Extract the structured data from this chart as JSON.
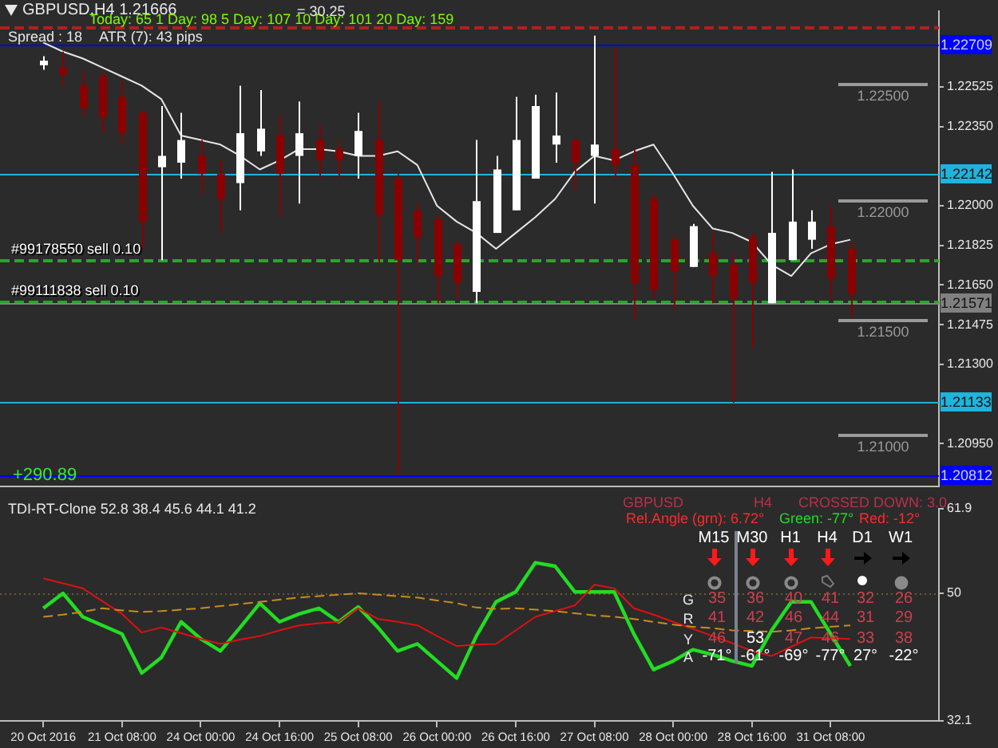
{
  "chart_data": [
    {
      "type": "candlestick",
      "title": "GBPUSD,H4  1.21666",
      "categories": [
        null,
        null,
        null,
        null,
        null,
        null,
        null,
        null,
        null,
        null,
        null,
        null,
        null,
        null,
        null,
        null,
        null,
        null,
        null,
        null,
        null,
        null,
        null,
        null,
        null,
        null,
        null,
        null,
        null,
        null,
        null,
        null,
        null,
        null,
        null,
        null,
        null,
        null,
        null,
        null,
        null,
        null
      ],
      "ohlc": [
        [
          1.2262,
          1.2266,
          1.226,
          1.2264
        ],
        [
          1.2261,
          1.2268,
          1.2253,
          1.2258
        ],
        [
          1.2253,
          1.2259,
          1.2239,
          1.2243
        ],
        [
          1.2257,
          1.2259,
          1.2232,
          1.2239
        ],
        [
          1.2248,
          1.2255,
          1.2227,
          1.2232
        ],
        [
          1.2241,
          1.2242,
          1.2181,
          1.2193
        ],
        [
          1.2217,
          1.2244,
          1.2176,
          1.2222
        ],
        [
          1.2219,
          1.2241,
          1.2212,
          1.2229
        ],
        [
          1.2222,
          1.2229,
          1.2205,
          1.2214
        ],
        [
          1.2214,
          1.222,
          1.2188,
          1.2203
        ],
        [
          1.221,
          1.2253,
          1.2198,
          1.2232
        ],
        [
          1.2224,
          1.2251,
          1.2222,
          1.2234
        ],
        [
          1.2231,
          1.224,
          1.2195,
          1.2214
        ],
        [
          1.2222,
          1.2246,
          1.2201,
          1.2232
        ],
        [
          1.2229,
          1.2236,
          1.2212,
          1.222
        ],
        [
          1.2225,
          1.2229,
          1.2212,
          1.222
        ],
        [
          1.2222,
          1.2241,
          1.2212,
          1.2233
        ],
        [
          1.2229,
          1.2246,
          1.2175,
          1.2196
        ],
        [
          1.2212,
          1.2214,
          1.2082,
          1.2176
        ],
        [
          1.2198,
          1.2201,
          1.2174,
          1.2186
        ],
        [
          1.2194,
          1.2196,
          1.2157,
          1.2169
        ],
        [
          1.2183,
          1.2184,
          1.2159,
          1.2166
        ],
        [
          1.2162,
          1.2229,
          1.2157,
          1.2202
        ],
        [
          1.2188,
          1.2222,
          1.2188,
          1.2216
        ],
        [
          1.2198,
          1.2248,
          1.2198,
          1.2229
        ],
        [
          1.2212,
          1.2249,
          1.2212,
          1.2244
        ],
        [
          1.2227,
          1.225,
          1.2219,
          1.2231
        ],
        [
          1.2229,
          1.2229,
          1.2207,
          1.2219
        ],
        [
          1.2222,
          1.2275,
          1.2201,
          1.2227
        ],
        [
          1.2225,
          1.227,
          1.2212,
          1.2218
        ],
        [
          1.2218,
          1.2225,
          1.215,
          1.2166
        ],
        [
          1.2203,
          1.2205,
          1.2159,
          1.2163
        ],
        [
          1.2185,
          1.2187,
          1.2154,
          1.2171
        ],
        [
          1.2173,
          1.2192,
          1.2173,
          1.2191
        ],
        [
          1.2179,
          1.2188,
          1.2157,
          1.2169
        ],
        [
          1.2174,
          1.2179,
          1.2113,
          1.2159
        ],
        [
          1.2186,
          1.2188,
          1.2137,
          1.2166
        ],
        [
          1.2157,
          1.2215,
          1.2157,
          1.2188
        ],
        [
          1.2176,
          1.2216,
          1.2176,
          1.2193
        ],
        [
          1.2185,
          1.2198,
          1.2181,
          1.2193
        ],
        [
          1.2191,
          1.22,
          1.2159,
          1.2168
        ],
        [
          1.2181,
          1.2184,
          1.2151,
          1.2161
        ]
      ],
      "colors": [
        "#ffffff",
        "#8b0000",
        "#8b0000",
        "#8b0000",
        "#8b0000",
        "#8b0000",
        "#ffffff",
        "#ffffff",
        "#8b0000",
        "#8b0000",
        "#ffffff",
        "#ffffff",
        "#8b0000",
        "#ffffff",
        "#8b0000",
        "#8b0000",
        "#ffffff",
        "#8b0000",
        "#8b0000",
        "#8b0000",
        "#8b0000",
        "#8b0000",
        "#ffffff",
        "#ffffff",
        "#ffffff",
        "#ffffff",
        "#ffffff",
        "#8b0000",
        "#ffffff",
        "#8b0000",
        "#8b0000",
        "#8b0000",
        "#8b0000",
        "#ffffff",
        "#8b0000",
        "#8b0000",
        "#8b0000",
        "#ffffff",
        "#ffffff",
        "#ffffff",
        "#8b0000",
        "#8b0000"
      ],
      "series": [
        {
          "type": "line",
          "color": "#e6e6e6",
          "values": [
            1.2272,
            1.2268,
            1.2265,
            1.2261,
            1.2257,
            1.2253,
            1.2247,
            1.2231,
            1.2229,
            1.2227,
            1.2222,
            1.2216,
            1.222,
            1.2225,
            1.2225,
            1.2224,
            1.2222,
            1.2222,
            1.2224,
            1.2218,
            1.22,
            1.2193,
            1.2188,
            1.2181,
            1.2188,
            1.2195,
            1.2203,
            1.2215,
            1.2222,
            1.222,
            1.2224,
            1.2227,
            1.2214,
            1.22,
            1.219,
            1.2188,
            1.2184,
            1.2174,
            1.2169,
            1.2179,
            1.2183,
            1.2185
          ]
        }
      ],
      "ylim": [
        1.2076,
        1.2286
      ],
      "yticks": [
        {
          "value": 1.2095,
          "label": "1.20950"
        },
        {
          "value": 1.213,
          "label": "1.21300"
        },
        {
          "value": 1.21475,
          "label": "1.21475"
        },
        {
          "value": 1.2165,
          "label": "1.21650"
        },
        {
          "value": 1.21825,
          "label": "1.21825"
        },
        {
          "value": 1.22,
          "label": "1.22000"
        },
        {
          "value": 1.2235,
          "label": "1.22350"
        },
        {
          "value": 1.22525,
          "label": "1.22525"
        }
      ],
      "ref_lines": [
        {
          "axis": "y",
          "value": 1.2279,
          "color": "#b41e1e",
          "line_style": "dashed"
        },
        {
          "axis": "y",
          "value": 1.22709,
          "label": "1.22709",
          "color": "#0000ff"
        },
        {
          "axis": "y",
          "value": 1.22142,
          "label": "1.22142",
          "color": "#1eb4dc"
        },
        {
          "axis": "y",
          "value": 1.2176,
          "label": "#99178550 sell 0.10",
          "color": "#22aa22",
          "line_style": "dashed"
        },
        {
          "axis": "y",
          "value": 1.2158,
          "label": "#99111838 sell 0.10",
          "color": "#22aa22",
          "line_style": "dashed"
        },
        {
          "axis": "y",
          "value": 1.21571,
          "label": "1.21571",
          "color": "#808080"
        },
        {
          "axis": "y",
          "value": 1.21133,
          "label": "1.21133",
          "color": "#1eb4dc"
        },
        {
          "axis": "y",
          "value": 1.20812,
          "label": "1.20812",
          "color": "#0000ff"
        }
      ],
      "annotations": [
        "Spread : 18",
        "ATR (7): 43 pips",
        "Today: 65   1 Day: 98   5 Day: 107   10 Day: 101   20 Day: 159",
        "= 30.25",
        "+290.89",
        "1.22500",
        "1.22000",
        "1.21500",
        "1.21000"
      ],
      "tick_labels": "y"
    },
    {
      "type": "line",
      "title": "TDI-RT-Clone 52.8 38.4 45.6 44.1 41.2",
      "categories": [
        "20 Oct 2016",
        null,
        null,
        null,
        "21 Oct 08:00",
        null,
        null,
        null,
        "24 Oct 00:00",
        null,
        null,
        null,
        "24 Oct 16:00",
        null,
        null,
        null,
        "25 Oct 08:00",
        null,
        null,
        null,
        "26 Oct 00:00",
        null,
        null,
        null,
        "26 Oct 16:00",
        null,
        null,
        null,
        "27 Oct 08:00",
        null,
        null,
        null,
        "28 Oct 00:00",
        null,
        null,
        null,
        "28 Oct 16:00",
        null,
        null,
        null,
        "31 Oct 08:00",
        null
      ],
      "series": [
        {
          "color": "#c88c1e",
          "line_style": "dashed",
          "values": [
            46.7,
            47.0,
            47.4,
            47.9,
            47.6,
            47.4,
            47.5,
            47.7,
            47.9,
            48.2,
            48.5,
            48.8,
            49.1,
            49.4,
            49.6,
            49.8,
            50.0,
            49.8,
            49.6,
            49.4,
            49.0,
            48.6,
            48.0,
            47.8,
            47.9,
            47.7,
            47.5,
            47.2,
            46.9,
            46.7,
            46.4,
            46.0,
            45.6,
            45.3,
            45.1,
            44.8,
            44.7,
            44.6,
            44.8,
            45.1,
            45.3,
            45.5
          ]
        },
        {
          "color": "#e01010",
          "values": [
            52.1,
            51.4,
            50.7,
            48.9,
            47.1,
            44.5,
            45.2,
            44.4,
            43.6,
            42.9,
            43.5,
            44.0,
            44.8,
            45.5,
            45.8,
            46.0,
            47.9,
            46.4,
            46.0,
            45.5,
            44.0,
            42.6,
            42.8,
            42.9,
            44.8,
            46.7,
            47.5,
            48.3,
            51.2,
            50.7,
            47.9,
            47.0,
            46.0,
            45.0,
            44.0,
            43.0,
            41.9,
            41.2,
            42.5,
            43.8,
            43.7,
            43.6
          ]
        },
        {
          "color": "#22dd22",
          "values": [
            47.9,
            50.0,
            46.7,
            45.5,
            44.3,
            38.8,
            41.0,
            46.0,
            43.6,
            41.9,
            45.2,
            48.6,
            46.0,
            47.1,
            47.9,
            46.0,
            48.1,
            45.2,
            41.9,
            42.9,
            40.5,
            38.1,
            44.0,
            48.8,
            50.2,
            54.3,
            53.8,
            50.2,
            50.2,
            50.2,
            44.3,
            39.3,
            40.5,
            42.1,
            41.4,
            40.5,
            39.8,
            44.8,
            48.8,
            48.8,
            44.3,
            39.8
          ]
        }
      ],
      "ylim": [
        32.1,
        61.9
      ],
      "yticks": [
        32.1,
        50,
        61.9
      ],
      "ref_lines": [
        {
          "axis": "y",
          "value": 50,
          "color": "#6b5a2a",
          "line_style": "dotted"
        }
      ],
      "annotations": [
        "GBPUSD",
        "H4",
        "CROSSED DOWN: 3.0",
        "Rel.Angle (grn): 6.72°",
        "Green: -77°",
        "Red: -12°",
        "M15",
        "M30",
        "H1",
        "H4",
        "D1",
        "W1",
        "G",
        "35",
        "36",
        "40",
        "41",
        "32",
        "26",
        "R",
        "41",
        "42",
        "46",
        "44",
        "31",
        "29",
        "Y",
        "46",
        "53",
        "47",
        "46",
        "33",
        "38",
        "A",
        "-71°",
        "-61°",
        "-69°",
        "-77°",
        "27°",
        "-22°"
      ]
    }
  ]
}
